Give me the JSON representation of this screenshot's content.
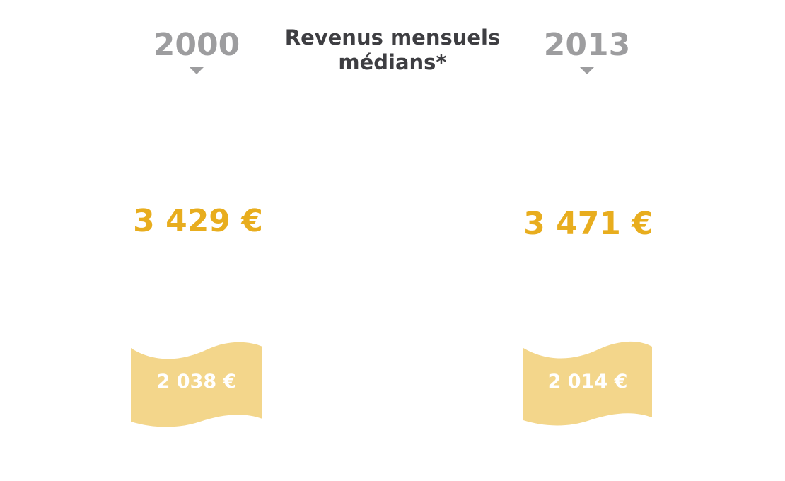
{
  "title": {
    "line1": "Revenus mensuels",
    "line2": "médians*"
  },
  "columns": [
    {
      "year": "2000",
      "top_value": "3 429 €",
      "bottom_value": "2 038 €"
    },
    {
      "year": "2013",
      "top_value": "3 471 €",
      "bottom_value": "2 014 €"
    }
  ],
  "colors": {
    "year_gray": "#9d9d9f",
    "title_dark": "#3e3e42",
    "accent_gold": "#e8ad1e",
    "flag_fill": "#f3d68b",
    "flag_text": "#ffffff"
  },
  "icons": {
    "year_marker": "caret-down-icon",
    "banner": "wavy-banner-icon"
  }
}
